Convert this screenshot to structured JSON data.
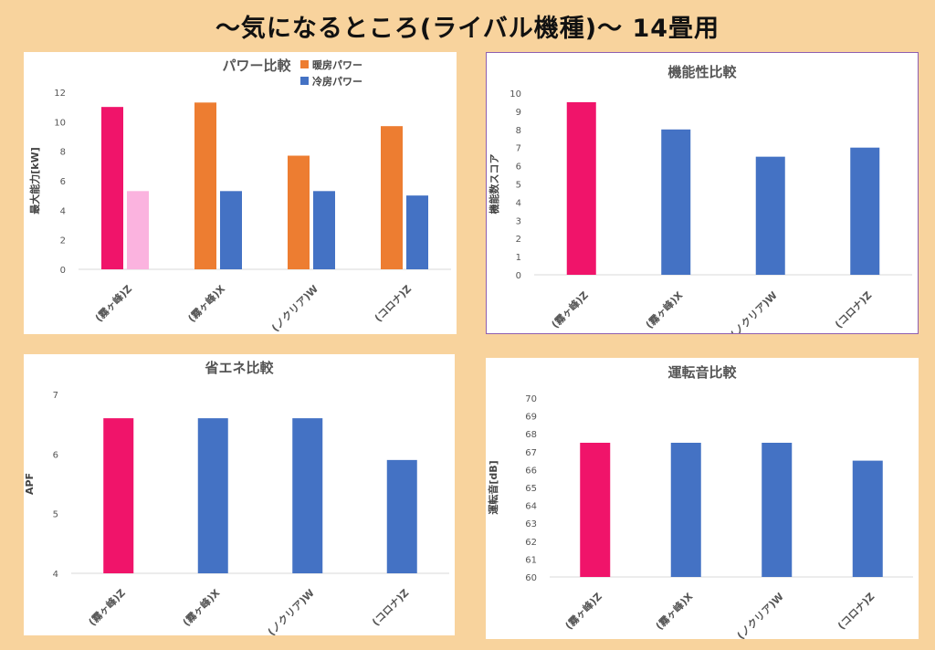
{
  "page": {
    "title": "〜気になるところ(ライバル機種)〜 14畳用"
  },
  "colors": {
    "background": "#f8d39d",
    "highlight": "#f0146a",
    "highlight_light": "#fbb3df",
    "heating": "#ed7d31",
    "cooling": "#4472c4",
    "grid": "#d9d9d9"
  },
  "chart_data": [
    {
      "id": "power",
      "type": "bar",
      "title": "パワー比較",
      "ylabel": "最大能力[kW]",
      "xlabel": "",
      "categories": [
        "(霧ヶ峰)Z",
        "(霧ヶ峰)X",
        "(ノクリア)W",
        "(コロナ)Z"
      ],
      "ylim": [
        0,
        12
      ],
      "yticks": [
        0,
        2,
        4,
        6,
        8,
        10,
        12
      ],
      "grid": false,
      "legend": "top-right",
      "series": [
        {
          "name": "暖房パワー",
          "values": [
            11.0,
            11.3,
            7.7,
            9.7
          ],
          "color": "#ed7d31",
          "first_color": "#f0146a"
        },
        {
          "name": "冷房パワー",
          "values": [
            5.3,
            5.3,
            5.3,
            5.0
          ],
          "color": "#4472c4",
          "first_color": "#fbb3df"
        }
      ]
    },
    {
      "id": "function",
      "type": "bar",
      "title": "機能性比較",
      "ylabel": "機能数スコア",
      "xlabel": "",
      "categories": [
        "(霧ヶ峰)Z",
        "(霧ヶ峰)X",
        "(ノクリア)W",
        "(コロナ)Z"
      ],
      "ylim": [
        0,
        10
      ],
      "yticks": [
        0,
        1,
        2,
        3,
        4,
        5,
        6,
        7,
        8,
        9,
        10
      ],
      "grid": false,
      "series": [
        {
          "values": [
            9.5,
            8.0,
            6.5,
            7.0
          ],
          "color": "#4472c4",
          "first_color": "#f0146a"
        }
      ]
    },
    {
      "id": "apf",
      "type": "bar",
      "title": "省エネ比較",
      "ylabel": "APF",
      "xlabel": "",
      "categories": [
        "(霧ヶ峰)Z",
        "(霧ヶ峰)X",
        "(ノクリア)W",
        "(コロナ)Z"
      ],
      "ylim": [
        4,
        7
      ],
      "yticks": [
        4,
        5,
        6,
        7
      ],
      "grid": false,
      "series": [
        {
          "values": [
            6.6,
            6.6,
            6.6,
            5.9
          ],
          "color": "#4472c4",
          "first_color": "#f0146a"
        }
      ]
    },
    {
      "id": "noise",
      "type": "bar",
      "title": "運転音比較",
      "ylabel": "運転音[dB]",
      "xlabel": "",
      "categories": [
        "(霧ヶ峰)Z",
        "(霧ヶ峰)X",
        "(ノクリア)W",
        "(コロナ)Z"
      ],
      "ylim": [
        60,
        70
      ],
      "yticks": [
        60,
        61,
        62,
        63,
        64,
        65,
        66,
        67,
        68,
        69,
        70
      ],
      "grid": false,
      "series": [
        {
          "values": [
            67.5,
            67.5,
            67.5,
            66.5
          ],
          "color": "#4472c4",
          "first_color": "#f0146a"
        }
      ]
    }
  ]
}
